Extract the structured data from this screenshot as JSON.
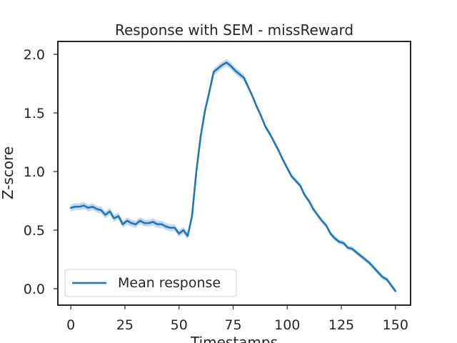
{
  "chart_data": {
    "type": "line",
    "title": "Response with SEM - missReward",
    "xlabel": "Timestamps",
    "ylabel": "Z-score",
    "xlim": [
      -6,
      157
    ],
    "ylim": [
      -0.14,
      2.11
    ],
    "xticks": [
      0,
      25,
      50,
      75,
      100,
      125,
      150
    ],
    "xtick_labels": [
      "0",
      "25",
      "50",
      "75",
      "100",
      "125",
      "150"
    ],
    "yticks": [
      0.0,
      0.5,
      1.0,
      1.5,
      2.0
    ],
    "ytick_labels": [
      "0.0",
      "0.5",
      "1.0",
      "1.5",
      "2.0"
    ],
    "grid": false,
    "legend": {
      "position": "lower-left",
      "entries": [
        "Mean response"
      ]
    },
    "line_color": "#1f77b4",
    "band_color": "#aec7e8",
    "series": [
      {
        "name": "Mean response",
        "x": [
          0,
          2,
          4,
          6,
          8,
          10,
          12,
          14,
          16,
          18,
          20,
          22,
          24,
          26,
          28,
          30,
          32,
          34,
          36,
          38,
          40,
          42,
          44,
          46,
          48,
          50,
          52,
          54,
          56,
          58,
          60,
          62,
          64,
          66,
          68,
          70,
          72,
          74,
          76,
          78,
          80,
          82,
          84,
          86,
          88,
          90,
          92,
          94,
          96,
          98,
          100,
          102,
          104,
          106,
          108,
          110,
          112,
          114,
          116,
          118,
          120,
          122,
          124,
          126,
          128,
          130,
          132,
          134,
          136,
          138,
          140,
          142,
          144,
          146,
          148,
          150
        ],
        "values": [
          0.69,
          0.7,
          0.7,
          0.71,
          0.69,
          0.7,
          0.68,
          0.67,
          0.63,
          0.66,
          0.6,
          0.62,
          0.55,
          0.58,
          0.56,
          0.55,
          0.58,
          0.56,
          0.56,
          0.57,
          0.55,
          0.55,
          0.53,
          0.52,
          0.52,
          0.47,
          0.5,
          0.45,
          0.62,
          1.0,
          1.3,
          1.52,
          1.68,
          1.85,
          1.88,
          1.91,
          1.93,
          1.9,
          1.86,
          1.83,
          1.8,
          1.72,
          1.64,
          1.55,
          1.47,
          1.38,
          1.32,
          1.25,
          1.18,
          1.1,
          1.03,
          0.96,
          0.92,
          0.88,
          0.8,
          0.75,
          0.68,
          0.63,
          0.58,
          0.54,
          0.47,
          0.43,
          0.4,
          0.39,
          0.35,
          0.34,
          0.31,
          0.28,
          0.25,
          0.22,
          0.18,
          0.14,
          0.1,
          0.08,
          0.03,
          -0.02
        ],
        "sem": [
          0.03,
          0.03,
          0.03,
          0.03,
          0.03,
          0.03,
          0.03,
          0.03,
          0.03,
          0.03,
          0.03,
          0.03,
          0.03,
          0.03,
          0.03,
          0.03,
          0.03,
          0.03,
          0.03,
          0.03,
          0.03,
          0.03,
          0.03,
          0.03,
          0.03,
          0.03,
          0.03,
          0.03,
          0.03,
          0.03,
          0.03,
          0.03,
          0.03,
          0.03,
          0.03,
          0.03,
          0.03,
          0.03,
          0.03,
          0.03,
          0.03,
          0.02,
          0.02,
          0.02,
          0.02,
          0.02,
          0.02,
          0.02,
          0.02,
          0.02,
          0.02,
          0.02,
          0.02,
          0.02,
          0.02,
          0.02,
          0.02,
          0.02,
          0.02,
          0.02,
          0.02,
          0.02,
          0.02,
          0.02,
          0.02,
          0.02,
          0.02,
          0.02,
          0.02,
          0.02,
          0.02,
          0.02,
          0.02,
          0.02,
          0.02,
          0.02
        ]
      }
    ]
  }
}
